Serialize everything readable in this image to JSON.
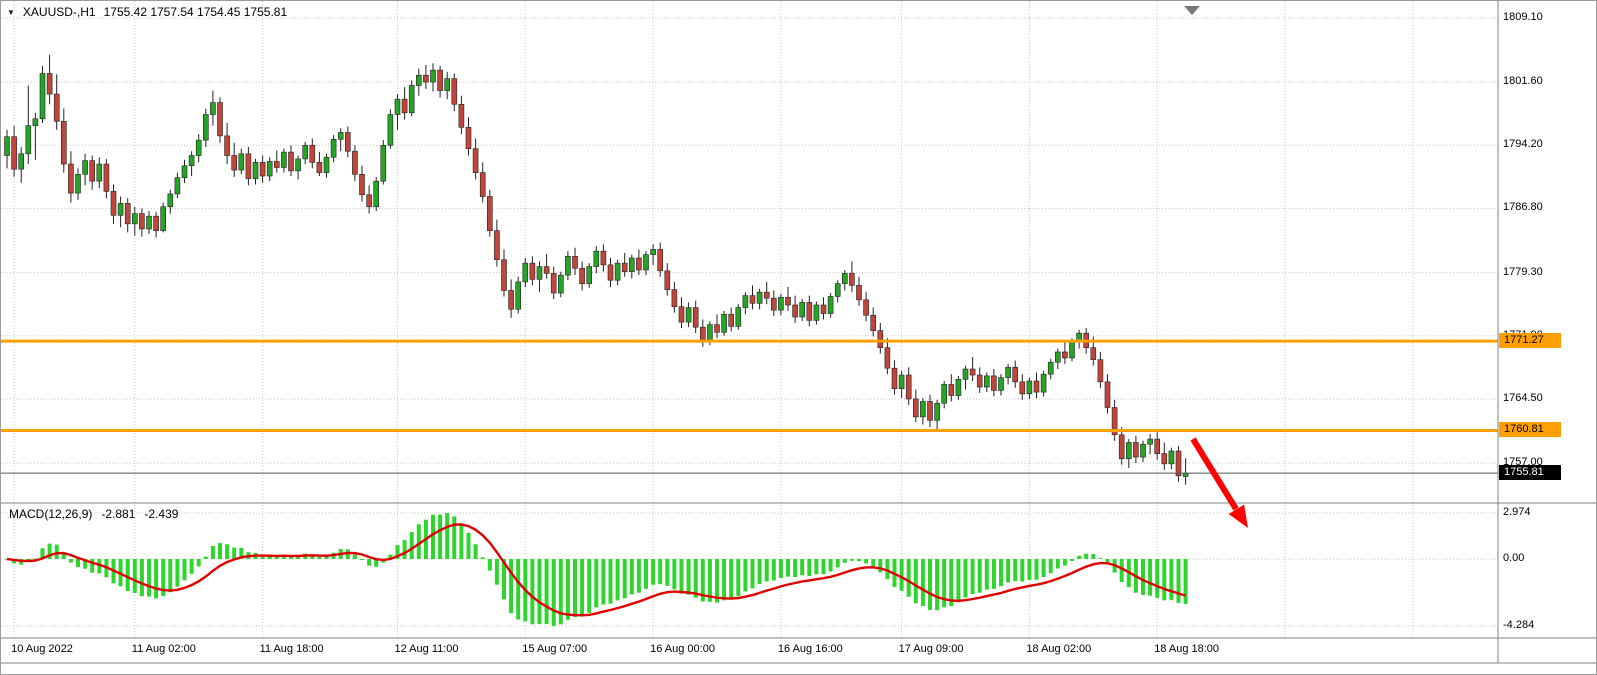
{
  "window": {
    "dropdown_icon": "▼",
    "symbol": "XAUUSD-,H1",
    "ohlc_text": "1755.42 1757.54 1754.45 1755.81"
  },
  "price_axis": {
    "current_price_label": "1755.81"
  },
  "hlines": [
    {
      "label": "1771.27",
      "price": 1771.27
    },
    {
      "label": "1760.81",
      "price": 1760.81
    }
  ],
  "macd_panel": {
    "title": "MACD(12,26,9)",
    "macd_value": "-2.881",
    "signal_value": "-2.439"
  },
  "colors": {
    "bull": "#27a327",
    "bear": "#c0453a",
    "wick": "#222222",
    "hist": "#2ed52e",
    "signal": "#e00000",
    "hline": "#ffa000",
    "grid": "#c9c9c9",
    "arrow": "#ff0000",
    "separator": "#808080",
    "tag_current_bg": "#000000",
    "tag_current_fg": "#ffffff"
  },
  "chart_data": {
    "type": "candlestick",
    "title": "XAUUSD-,H1",
    "symbol": "XAUUSD-",
    "timeframe": "H1",
    "grid": true,
    "ylim": [
      1751.5,
      1811.0
    ],
    "y_ticks": [
      "1809.10",
      "1801.60",
      "1794.20",
      "1786.80",
      "1779.30",
      "1771.90",
      "1764.50",
      "1757.00"
    ],
    "x_ticks": [
      {
        "label": "10 Aug 2022",
        "i": 1
      },
      {
        "label": "11 Aug 02:00",
        "i": 18
      },
      {
        "label": "11 Aug 18:00",
        "i": 36
      },
      {
        "label": "12 Aug 11:00",
        "i": 55
      },
      {
        "label": "15 Aug 07:00",
        "i": 73
      },
      {
        "label": "16 Aug 00:00",
        "i": 91
      },
      {
        "label": "16 Aug 16:00",
        "i": 109
      },
      {
        "label": "17 Aug 09:00",
        "i": 126
      },
      {
        "label": "18 Aug 02:00",
        "i": 144
      },
      {
        "label": "18 Aug 18:00",
        "i": 162
      }
    ],
    "support_resistance_lines": [
      1771.27,
      1760.81
    ],
    "current_bar": {
      "open": 1755.42,
      "high": 1757.54,
      "low": 1754.45,
      "close": 1755.81
    },
    "macd": {
      "fast": 12,
      "slow": 26,
      "signal_period": 9,
      "current_macd": -2.881,
      "current_signal": -2.439,
      "scale_ticks": [
        "2.974",
        "0.00",
        "-4.284"
      ],
      "scale_values": [
        2.974,
        0,
        -4.284
      ]
    },
    "ohlc": [
      [
        1793.0,
        1796.0,
        1791.5,
        1795.2
      ],
      [
        1795.2,
        1796.5,
        1790.5,
        1791.4
      ],
      [
        1791.4,
        1794.0,
        1789.8,
        1793.2
      ],
      [
        1793.2,
        1801.2,
        1792.0,
        1796.5
      ],
      [
        1796.5,
        1798.0,
        1792.5,
        1797.3
      ],
      [
        1797.3,
        1803.5,
        1796.8,
        1802.6
      ],
      [
        1802.6,
        1804.8,
        1799.0,
        1800.2
      ],
      [
        1800.2,
        1802.5,
        1796.0,
        1797.0
      ],
      [
        1797.0,
        1798.5,
        1791.0,
        1792.0
      ],
      [
        1792.0,
        1793.5,
        1787.5,
        1788.6
      ],
      [
        1788.6,
        1791.5,
        1787.8,
        1790.8
      ],
      [
        1790.8,
        1793.2,
        1789.5,
        1792.4
      ],
      [
        1792.4,
        1793.0,
        1789.0,
        1790.0
      ],
      [
        1790.0,
        1792.8,
        1789.2,
        1792.0
      ],
      [
        1792.0,
        1792.6,
        1788.0,
        1788.8
      ],
      [
        1788.8,
        1789.6,
        1785.0,
        1786.0
      ],
      [
        1786.0,
        1788.2,
        1784.6,
        1787.4
      ],
      [
        1787.4,
        1788.0,
        1784.0,
        1785.0
      ],
      [
        1785.0,
        1787.0,
        1783.6,
        1786.2
      ],
      [
        1786.2,
        1786.8,
        1783.5,
        1784.4
      ],
      [
        1784.4,
        1786.5,
        1783.8,
        1785.9
      ],
      [
        1785.9,
        1786.4,
        1783.4,
        1784.2
      ],
      [
        1784.2,
        1787.5,
        1784.0,
        1787.0
      ],
      [
        1787.0,
        1789.0,
        1786.2,
        1788.5
      ],
      [
        1788.5,
        1791.0,
        1788.0,
        1790.4
      ],
      [
        1790.4,
        1792.5,
        1789.8,
        1791.8
      ],
      [
        1791.8,
        1793.5,
        1790.6,
        1793.0
      ],
      [
        1793.0,
        1795.5,
        1792.2,
        1794.8
      ],
      [
        1794.8,
        1798.5,
        1794.0,
        1797.8
      ],
      [
        1797.8,
        1800.6,
        1796.5,
        1799.2
      ],
      [
        1799.2,
        1799.8,
        1794.5,
        1795.3
      ],
      [
        1795.3,
        1796.8,
        1792.0,
        1793.0
      ],
      [
        1793.0,
        1794.5,
        1790.5,
        1791.3
      ],
      [
        1791.3,
        1793.8,
        1790.8,
        1793.2
      ],
      [
        1793.2,
        1794.0,
        1789.5,
        1790.3
      ],
      [
        1790.3,
        1792.6,
        1789.6,
        1792.2
      ],
      [
        1792.2,
        1793.0,
        1789.8,
        1790.6
      ],
      [
        1790.6,
        1792.8,
        1790.0,
        1792.3
      ],
      [
        1792.3,
        1793.6,
        1791.0,
        1791.6
      ],
      [
        1791.6,
        1793.8,
        1791.0,
        1793.4
      ],
      [
        1793.4,
        1794.2,
        1790.6,
        1791.2
      ],
      [
        1791.2,
        1793.0,
        1790.2,
        1792.6
      ],
      [
        1792.6,
        1794.6,
        1792.0,
        1794.2
      ],
      [
        1794.2,
        1795.0,
        1791.5,
        1792.2
      ],
      [
        1792.2,
        1793.4,
        1790.6,
        1791.0
      ],
      [
        1791.0,
        1793.2,
        1790.4,
        1792.8
      ],
      [
        1792.8,
        1795.4,
        1792.2,
        1794.9
      ],
      [
        1794.9,
        1796.2,
        1793.5,
        1795.7
      ],
      [
        1795.7,
        1796.4,
        1792.8,
        1793.5
      ],
      [
        1793.5,
        1794.2,
        1790.0,
        1790.8
      ],
      [
        1790.8,
        1791.8,
        1787.6,
        1788.4
      ],
      [
        1788.4,
        1789.5,
        1786.2,
        1787.0
      ],
      [
        1787.0,
        1790.5,
        1786.5,
        1790.0
      ],
      [
        1790.0,
        1794.8,
        1789.6,
        1794.2
      ],
      [
        1794.2,
        1798.4,
        1793.8,
        1797.8
      ],
      [
        1797.8,
        1800.2,
        1796.0,
        1799.6
      ],
      [
        1799.6,
        1801.0,
        1797.2,
        1798.0
      ],
      [
        1798.0,
        1801.8,
        1797.6,
        1801.2
      ],
      [
        1801.2,
        1803.2,
        1800.0,
        1802.4
      ],
      [
        1802.4,
        1803.6,
        1800.8,
        1801.6
      ],
      [
        1801.6,
        1803.8,
        1800.5,
        1803.0
      ],
      [
        1803.0,
        1803.5,
        1799.8,
        1800.6
      ],
      [
        1800.6,
        1802.8,
        1799.6,
        1802.0
      ],
      [
        1802.0,
        1802.6,
        1798.2,
        1799.0
      ],
      [
        1799.0,
        1800.0,
        1795.5,
        1796.3
      ],
      [
        1796.3,
        1797.5,
        1793.0,
        1793.8
      ],
      [
        1793.8,
        1795.0,
        1790.2,
        1791.0
      ],
      [
        1791.0,
        1792.2,
        1787.5,
        1788.2
      ],
      [
        1788.2,
        1789.0,
        1783.5,
        1784.2
      ],
      [
        1784.2,
        1785.5,
        1780.0,
        1780.8
      ],
      [
        1780.8,
        1782.0,
        1776.5,
        1777.2
      ],
      [
        1777.2,
        1778.5,
        1774.0,
        1775.0
      ],
      [
        1775.0,
        1778.8,
        1774.5,
        1778.2
      ],
      [
        1778.2,
        1781.0,
        1777.6,
        1780.4
      ],
      [
        1780.4,
        1781.2,
        1777.8,
        1778.5
      ],
      [
        1778.5,
        1780.6,
        1777.0,
        1780.0
      ],
      [
        1780.0,
        1781.5,
        1778.6,
        1779.2
      ],
      [
        1779.2,
        1780.0,
        1776.2,
        1776.9
      ],
      [
        1776.9,
        1779.4,
        1776.4,
        1779.0
      ],
      [
        1779.0,
        1781.8,
        1778.4,
        1781.2
      ],
      [
        1781.2,
        1782.2,
        1779.0,
        1779.8
      ],
      [
        1779.8,
        1780.6,
        1777.2,
        1778.0
      ],
      [
        1778.0,
        1780.4,
        1777.5,
        1780.0
      ],
      [
        1780.0,
        1782.4,
        1779.2,
        1781.8
      ],
      [
        1781.8,
        1782.6,
        1779.4,
        1780.2
      ],
      [
        1780.2,
        1781.0,
        1777.6,
        1778.4
      ],
      [
        1778.4,
        1780.8,
        1777.8,
        1780.4
      ],
      [
        1780.4,
        1781.6,
        1778.8,
        1779.4
      ],
      [
        1779.4,
        1781.4,
        1778.6,
        1781.0
      ],
      [
        1781.0,
        1782.0,
        1779.0,
        1779.6
      ],
      [
        1779.6,
        1781.8,
        1779.0,
        1781.4
      ],
      [
        1781.4,
        1782.6,
        1780.2,
        1782.0
      ],
      [
        1782.0,
        1782.8,
        1778.8,
        1779.5
      ],
      [
        1779.5,
        1780.4,
        1776.6,
        1777.3
      ],
      [
        1777.3,
        1778.2,
        1774.6,
        1775.3
      ],
      [
        1775.3,
        1776.4,
        1772.8,
        1773.5
      ],
      [
        1773.5,
        1775.8,
        1772.9,
        1775.2
      ],
      [
        1775.2,
        1776.0,
        1772.2,
        1772.9
      ],
      [
        1772.9,
        1773.8,
        1770.6,
        1771.4
      ],
      [
        1771.4,
        1773.6,
        1770.8,
        1773.2
      ],
      [
        1773.2,
        1774.4,
        1771.6,
        1772.3
      ],
      [
        1772.3,
        1774.8,
        1771.9,
        1774.4
      ],
      [
        1774.4,
        1775.2,
        1772.4,
        1773.0
      ],
      [
        1773.0,
        1775.6,
        1772.6,
        1775.2
      ],
      [
        1775.2,
        1777.0,
        1774.4,
        1776.6
      ],
      [
        1776.6,
        1777.8,
        1775.0,
        1775.7
      ],
      [
        1775.7,
        1777.4,
        1775.0,
        1777.0
      ],
      [
        1777.0,
        1778.2,
        1775.6,
        1776.3
      ],
      [
        1776.3,
        1777.2,
        1774.2,
        1774.9
      ],
      [
        1774.9,
        1776.8,
        1774.3,
        1776.4
      ],
      [
        1776.4,
        1777.6,
        1774.8,
        1775.5
      ],
      [
        1775.5,
        1776.6,
        1773.4,
        1774.1
      ],
      [
        1774.1,
        1776.2,
        1773.6,
        1775.8
      ],
      [
        1775.8,
        1776.6,
        1773.0,
        1773.7
      ],
      [
        1773.7,
        1775.9,
        1773.2,
        1775.5
      ],
      [
        1775.5,
        1776.4,
        1773.8,
        1774.5
      ],
      [
        1774.5,
        1776.9,
        1774.0,
        1776.5
      ],
      [
        1776.5,
        1778.4,
        1775.8,
        1778.0
      ],
      [
        1778.0,
        1779.6,
        1777.2,
        1779.2
      ],
      [
        1779.2,
        1780.6,
        1777.0,
        1777.8
      ],
      [
        1777.8,
        1778.8,
        1775.4,
        1776.1
      ],
      [
        1776.1,
        1777.0,
        1773.6,
        1774.3
      ],
      [
        1774.3,
        1775.2,
        1771.8,
        1772.5
      ],
      [
        1772.5,
        1773.4,
        1769.8,
        1770.5
      ],
      [
        1770.5,
        1771.6,
        1767.4,
        1768.1
      ],
      [
        1768.1,
        1769.0,
        1765.0,
        1765.7
      ],
      [
        1765.7,
        1767.8,
        1764.6,
        1767.3
      ],
      [
        1767.3,
        1768.2,
        1763.8,
        1764.5
      ],
      [
        1764.5,
        1765.6,
        1761.8,
        1762.4
      ],
      [
        1762.4,
        1764.6,
        1761.5,
        1764.2
      ],
      [
        1764.2,
        1765.0,
        1761.2,
        1762.0
      ],
      [
        1762.0,
        1764.4,
        1760.9,
        1764.0
      ],
      [
        1764.0,
        1766.6,
        1763.4,
        1766.2
      ],
      [
        1766.2,
        1767.4,
        1764.2,
        1764.9
      ],
      [
        1764.9,
        1767.2,
        1764.4,
        1766.8
      ],
      [
        1766.8,
        1768.4,
        1765.6,
        1768.0
      ],
      [
        1768.0,
        1769.4,
        1766.6,
        1767.3
      ],
      [
        1767.3,
        1768.2,
        1765.2,
        1765.9
      ],
      [
        1765.9,
        1767.6,
        1765.3,
        1767.2
      ],
      [
        1767.2,
        1768.0,
        1764.8,
        1765.5
      ],
      [
        1765.5,
        1767.4,
        1764.9,
        1767.0
      ],
      [
        1767.0,
        1768.6,
        1766.2,
        1768.2
      ],
      [
        1768.2,
        1769.0,
        1765.8,
        1766.5
      ],
      [
        1766.5,
        1767.4,
        1764.4,
        1765.1
      ],
      [
        1765.1,
        1767.0,
        1764.5,
        1766.6
      ],
      [
        1766.6,
        1767.6,
        1764.6,
        1765.3
      ],
      [
        1765.3,
        1767.8,
        1764.8,
        1767.4
      ],
      [
        1767.4,
        1769.2,
        1766.8,
        1768.8
      ],
      [
        1768.8,
        1770.4,
        1768.0,
        1770.0
      ],
      [
        1770.0,
        1771.2,
        1768.6,
        1769.3
      ],
      [
        1769.3,
        1771.6,
        1768.9,
        1771.2
      ],
      [
        1771.2,
        1772.6,
        1770.4,
        1772.2
      ],
      [
        1772.2,
        1772.8,
        1769.8,
        1770.5
      ],
      [
        1770.5,
        1771.8,
        1768.4,
        1769.1
      ],
      [
        1769.1,
        1770.0,
        1765.8,
        1766.5
      ],
      [
        1766.5,
        1767.4,
        1762.8,
        1763.5
      ],
      [
        1763.5,
        1764.4,
        1759.6,
        1760.3
      ],
      [
        1760.3,
        1761.2,
        1756.8,
        1757.5
      ],
      [
        1757.5,
        1759.8,
        1756.4,
        1759.4
      ],
      [
        1759.4,
        1760.2,
        1757.0,
        1757.7
      ],
      [
        1757.7,
        1759.6,
        1757.1,
        1759.2
      ],
      [
        1759.2,
        1760.4,
        1758.0,
        1759.8
      ],
      [
        1759.8,
        1760.6,
        1757.4,
        1758.1
      ],
      [
        1758.1,
        1759.4,
        1756.2,
        1756.9
      ],
      [
        1756.9,
        1758.8,
        1756.3,
        1758.4
      ],
      [
        1758.4,
        1759.0,
        1754.8,
        1755.5
      ],
      [
        1755.42,
        1757.54,
        1754.45,
        1755.81
      ]
    ]
  }
}
